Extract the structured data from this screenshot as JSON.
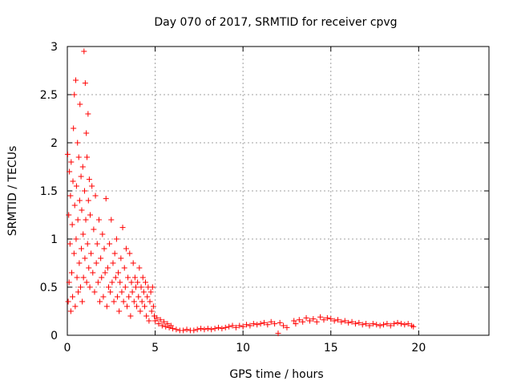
{
  "chart_data": {
    "type": "scatter",
    "title": "Day 070 of 2017, SRMTID for receiver cpvg",
    "xlabel": "GPS time / hours",
    "ylabel": "SRMTID / TECUs",
    "xlim": [
      0,
      24
    ],
    "ylim": [
      0,
      3
    ],
    "x_ticks": [
      0,
      5,
      10,
      15,
      20
    ],
    "y_ticks": [
      0,
      0.5,
      1,
      1.5,
      2,
      2.5,
      3
    ],
    "x_tick_labels": [
      "0",
      "5",
      "10",
      "15",
      "20"
    ],
    "y_tick_labels": [
      "0",
      "0.5",
      "1",
      "1.5",
      "2",
      "2.5",
      "3"
    ],
    "grid": true,
    "marker": "+",
    "series": [
      {
        "name": "SRMTID",
        "color": "#ff0000",
        "points": [
          [
            0.02,
            1.88
          ],
          [
            0.05,
            0.35
          ],
          [
            0.08,
            1.25
          ],
          [
            0.1,
            0.55
          ],
          [
            0.12,
            1.7
          ],
          [
            0.15,
            0.95
          ],
          [
            0.18,
            1.45
          ],
          [
            0.2,
            0.25
          ],
          [
            0.22,
            1.8
          ],
          [
            0.25,
            0.65
          ],
          [
            0.28,
            1.15
          ],
          [
            0.3,
            0.4
          ],
          [
            0.32,
            1.6
          ],
          [
            0.35,
            2.15
          ],
          [
            0.38,
            0.85
          ],
          [
            0.4,
            2.5
          ],
          [
            0.42,
            1.35
          ],
          [
            0.45,
            0.3
          ],
          [
            0.48,
            2.65
          ],
          [
            0.5,
            1.0
          ],
          [
            0.52,
            1.55
          ],
          [
            0.55,
            0.6
          ],
          [
            0.58,
            2.0
          ],
          [
            0.6,
            1.2
          ],
          [
            0.62,
            0.45
          ],
          [
            0.65,
            1.85
          ],
          [
            0.68,
            0.75
          ],
          [
            0.7,
            1.4
          ],
          [
            0.72,
            2.4
          ],
          [
            0.75,
            0.5
          ],
          [
            0.78,
            1.65
          ],
          [
            0.8,
            0.9
          ],
          [
            0.82,
            1.3
          ],
          [
            0.85,
            0.35
          ],
          [
            0.88,
            1.75
          ],
          [
            0.9,
            1.05
          ],
          [
            0.92,
            0.6
          ],
          [
            0.95,
            2.95
          ],
          [
            0.98,
            1.5
          ],
          [
            1.0,
            0.8
          ],
          [
            1.02,
            2.62
          ],
          [
            1.05,
            1.2
          ],
          [
            1.08,
            2.1
          ],
          [
            1.1,
            0.55
          ],
          [
            1.12,
            1.85
          ],
          [
            1.15,
            0.95
          ],
          [
            1.18,
            2.3
          ],
          [
            1.2,
            1.4
          ],
          [
            1.22,
            0.7
          ],
          [
            1.25,
            1.62
          ],
          [
            1.28,
            0.5
          ],
          [
            1.3,
            1.25
          ],
          [
            1.35,
            0.85
          ],
          [
            1.4,
            1.55
          ],
          [
            1.45,
            0.65
          ],
          [
            1.5,
            1.1
          ],
          [
            1.55,
            0.45
          ],
          [
            1.6,
            1.45
          ],
          [
            1.65,
            0.75
          ],
          [
            1.7,
            0.95
          ],
          [
            1.75,
            0.55
          ],
          [
            1.8,
            1.2
          ],
          [
            1.85,
            0.35
          ],
          [
            1.9,
            0.8
          ],
          [
            1.95,
            0.6
          ],
          [
            2.0,
            1.05
          ],
          [
            2.05,
            0.4
          ],
          [
            2.1,
            0.9
          ],
          [
            2.15,
            0.65
          ],
          [
            2.2,
            1.42
          ],
          [
            2.25,
            0.3
          ],
          [
            2.3,
            0.7
          ],
          [
            2.35,
            0.5
          ],
          [
            2.4,
            0.95
          ],
          [
            2.45,
            0.45
          ],
          [
            2.5,
            1.2
          ],
          [
            2.55,
            0.55
          ],
          [
            2.6,
            0.75
          ],
          [
            2.65,
            0.35
          ],
          [
            2.7,
            0.85
          ],
          [
            2.75,
            0.6
          ],
          [
            2.8,
            1.0
          ],
          [
            2.85,
            0.4
          ],
          [
            2.9,
            0.65
          ],
          [
            2.95,
            0.25
          ],
          [
            3.0,
            0.55
          ],
          [
            3.05,
            0.8
          ],
          [
            3.1,
            0.45
          ],
          [
            3.15,
            1.12
          ],
          [
            3.2,
            0.35
          ],
          [
            3.25,
            0.7
          ],
          [
            3.3,
            0.5
          ],
          [
            3.35,
            0.9
          ],
          [
            3.4,
            0.3
          ],
          [
            3.45,
            0.6
          ],
          [
            3.5,
            0.4
          ],
          [
            3.55,
            0.85
          ],
          [
            3.6,
            0.2
          ],
          [
            3.65,
            0.55
          ],
          [
            3.7,
            0.45
          ],
          [
            3.75,
            0.75
          ],
          [
            3.8,
            0.35
          ],
          [
            3.85,
            0.6
          ],
          [
            3.9,
            0.5
          ],
          [
            3.95,
            0.3
          ],
          [
            4.0,
            0.55
          ],
          [
            4.05,
            0.4
          ],
          [
            4.1,
            0.7
          ],
          [
            4.15,
            0.25
          ],
          [
            4.2,
            0.5
          ],
          [
            4.25,
            0.35
          ],
          [
            4.3,
            0.6
          ],
          [
            4.35,
            0.45
          ],
          [
            4.4,
            0.3
          ],
          [
            4.45,
            0.55
          ],
          [
            4.5,
            0.2
          ],
          [
            4.55,
            0.4
          ],
          [
            4.6,
            0.5
          ],
          [
            4.65,
            0.15
          ],
          [
            4.7,
            0.35
          ],
          [
            4.75,
            0.45
          ],
          [
            4.8,
            0.25
          ],
          [
            4.85,
            0.5
          ],
          [
            4.9,
            0.3
          ],
          [
            4.95,
            0.2
          ],
          [
            5.0,
            0.15
          ],
          [
            5.1,
            0.18
          ],
          [
            5.2,
            0.12
          ],
          [
            5.3,
            0.16
          ],
          [
            5.4,
            0.1
          ],
          [
            5.5,
            0.14
          ],
          [
            5.6,
            0.09
          ],
          [
            5.7,
            0.12
          ],
          [
            5.8,
            0.08
          ],
          [
            5.9,
            0.1
          ],
          [
            6.0,
            0.07
          ],
          [
            6.2,
            0.06
          ],
          [
            6.4,
            0.05
          ],
          [
            6.6,
            0.05
          ],
          [
            6.8,
            0.06
          ],
          [
            7.0,
            0.05
          ],
          [
            7.2,
            0.05
          ],
          [
            7.4,
            0.06
          ],
          [
            7.6,
            0.07
          ],
          [
            7.8,
            0.06
          ],
          [
            8.0,
            0.07
          ],
          [
            8.2,
            0.06
          ],
          [
            8.4,
            0.07
          ],
          [
            8.6,
            0.08
          ],
          [
            8.8,
            0.07
          ],
          [
            9.0,
            0.08
          ],
          [
            9.2,
            0.09
          ],
          [
            9.4,
            0.1
          ],
          [
            9.6,
            0.08
          ],
          [
            9.8,
            0.1
          ],
          [
            10.0,
            0.09
          ],
          [
            10.2,
            0.11
          ],
          [
            10.4,
            0.1
          ],
          [
            10.6,
            0.12
          ],
          [
            10.8,
            0.11
          ],
          [
            11.0,
            0.12
          ],
          [
            11.2,
            0.13
          ],
          [
            11.4,
            0.11
          ],
          [
            11.6,
            0.14
          ],
          [
            11.8,
            0.12
          ],
          [
            12.0,
            0.02
          ],
          [
            12.1,
            0.13
          ],
          [
            12.3,
            0.1
          ],
          [
            12.5,
            0.08
          ],
          [
            12.9,
            0.15
          ],
          [
            13.0,
            0.12
          ],
          [
            13.2,
            0.16
          ],
          [
            13.4,
            0.14
          ],
          [
            13.6,
            0.18
          ],
          [
            13.8,
            0.15
          ],
          [
            14.0,
            0.17
          ],
          [
            14.2,
            0.14
          ],
          [
            14.4,
            0.19
          ],
          [
            14.6,
            0.16
          ],
          [
            14.8,
            0.18
          ],
          [
            15.0,
            0.17
          ],
          [
            15.2,
            0.15
          ],
          [
            15.4,
            0.16
          ],
          [
            15.6,
            0.14
          ],
          [
            15.8,
            0.15
          ],
          [
            16.0,
            0.13
          ],
          [
            16.2,
            0.14
          ],
          [
            16.4,
            0.12
          ],
          [
            16.6,
            0.13
          ],
          [
            16.8,
            0.11
          ],
          [
            17.0,
            0.12
          ],
          [
            17.2,
            0.1
          ],
          [
            17.4,
            0.12
          ],
          [
            17.6,
            0.11
          ],
          [
            17.8,
            0.1
          ],
          [
            18.0,
            0.11
          ],
          [
            18.2,
            0.12
          ],
          [
            18.4,
            0.1
          ],
          [
            18.6,
            0.12
          ],
          [
            18.8,
            0.13
          ],
          [
            19.0,
            0.12
          ],
          [
            19.2,
            0.11
          ],
          [
            19.4,
            0.12
          ],
          [
            19.6,
            0.1
          ],
          [
            19.7,
            0.09
          ]
        ]
      }
    ]
  }
}
